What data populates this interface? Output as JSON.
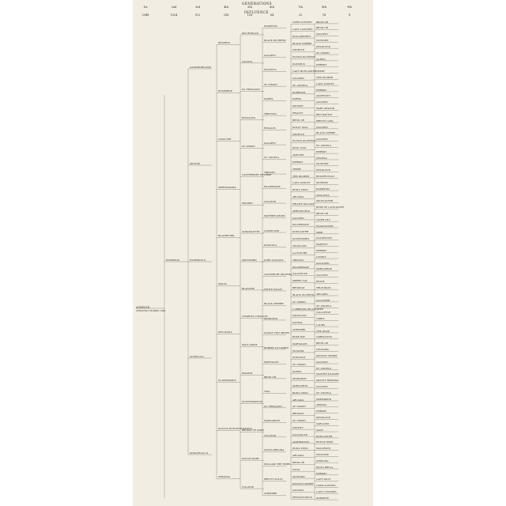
{
  "header": {
    "generations_label": "GENERATIONS",
    "influence_label": "INFLUENCE",
    "generation_numbers": [
      "1st",
      "2nd",
      "3rd",
      "4th",
      "5th",
      "6th",
      "7th",
      "8th",
      "9th"
    ],
    "influence_counts": [
      "2048",
      "1024",
      "512",
      "256",
      "128",
      "64",
      "32",
      "16",
      "8"
    ]
  },
  "subject": {
    "name": "AUREOLE",
    "subtitle": "(Chestnut Horse) 1950"
  },
  "pedigree": [
    {
      "name": "HYPERION",
      "gen": 1
    },
    {
      "name": "GAINSBOROUGH",
      "gen": 2
    },
    {
      "name": "SELENE",
      "gen": 2
    },
    {
      "name": "BAYARDO",
      "gen": 3
    },
    {
      "name": "ROSEDROP",
      "gen": 3
    },
    {
      "name": "CHAUCER",
      "gen": 3
    },
    {
      "name": "SERENISSIMA",
      "gen": 3
    },
    {
      "name": "BAY RONALD",
      "gen": 4
    },
    {
      "name": "GALICIA",
      "gen": 4
    },
    {
      "name": "ST. FRUSQUIN",
      "gen": 4
    },
    {
      "name": "ROSALIND",
      "gen": 4
    },
    {
      "name": "ST. SIMON",
      "gen": 4
    },
    {
      "name": "CANTERBURY PILGRIM",
      "gen": 4
    },
    {
      "name": "MINORU",
      "gen": 4
    },
    {
      "name": "GONDOLETTE",
      "gen": 4
    },
    {
      "name": "HAMPTON",
      "gen": 5
    },
    {
      "name": "BLACK DUCHESS",
      "gen": 5
    },
    {
      "name": "GALOPIN",
      "gen": 5
    },
    {
      "name": "ISOLETTA",
      "gen": 5
    },
    {
      "name": "ST. SIMON",
      "gen": 5
    },
    {
      "name": "ISABEL",
      "gen": 5
    },
    {
      "name": "TRENTON",
      "gen": 5
    },
    {
      "name": "ROSALYS",
      "gen": 5
    },
    {
      "name": "GALOPIN",
      "gen": 5
    },
    {
      "name": "ST. ANGELA",
      "gen": 5
    },
    {
      "name": "TRISTAN",
      "gen": 5
    },
    {
      "name": "PILGRIMAGE",
      "gen": 5
    },
    {
      "name": "CYLLENE",
      "gen": 5
    },
    {
      "name": "MOTHER SIEGEL",
      "gen": 5
    },
    {
      "name": "LOVED ONE",
      "gen": 5
    },
    {
      "name": "DONGOLA",
      "gen": 5
    },
    {
      "name": "LORD CLIFDEN",
      "gen": 6
    },
    {
      "name": "LADY LANGDEN",
      "gen": 6
    },
    {
      "name": "DOLLARSTEIN",
      "gen": 6
    },
    {
      "name": "BLACK CORRIE",
      "gen": 6
    },
    {
      "name": "VEDETTE",
      "gen": 6
    },
    {
      "name": "FLYING DUCHESS",
      "gen": 6
    },
    {
      "name": "DOCIMUS",
      "gen": 6
    },
    {
      "name": "LADY MUNCASTER",
      "gen": 6
    },
    {
      "name": "GALOPIN",
      "gen": 6
    },
    {
      "name": "ST. ANGELA",
      "gen": 6
    },
    {
      "name": "PLEBEIAN",
      "gen": 6
    },
    {
      "name": "PARMA",
      "gen": 6
    },
    {
      "name": "MUSKET",
      "gen": 6
    },
    {
      "name": "FRAILTY",
      "gen": 6
    },
    {
      "name": "BEND OR",
      "gen": 6
    },
    {
      "name": "DOLLY VAAL",
      "gen": 6
    },
    {
      "name": "VEDETTE",
      "gen": 6
    },
    {
      "name": "FLYING DUCHESS",
      "gen": 6
    },
    {
      "name": "KING TOM",
      "gen": 6
    },
    {
      "name": "ADELINE",
      "gen": 6
    },
    {
      "name": "HERMIT",
      "gen": 6
    },
    {
      "name": "THEBY",
      "gen": 6
    },
    {
      "name": "THE PALMER",
      "gen": 6
    },
    {
      "name": "LADY AUDLEY",
      "gen": 6
    },
    {
      "name": "BONA VISTA",
      "gen": 6
    },
    {
      "name": "ARCADIA",
      "gen": 6
    },
    {
      "name": "FRIAR'S BALSAM",
      "gen": 6
    },
    {
      "name": "SPRINGFIELD",
      "gen": 6
    },
    {
      "name": "GALOPIN",
      "gen": 6
    },
    {
      "name": "PILGRIMAGE",
      "gen": 6
    },
    {
      "name": "DONCASTER",
      "gen": 6
    },
    {
      "name": "DOCKHAMES",
      "gen": 6
    },
    {
      "name": "BEND OR",
      "gen": 7
    },
    {
      "name": "BEND OR",
      "gen": 7
    },
    {
      "name": "GALOPIN",
      "gen": 7
    },
    {
      "name": "BLANDFORD",
      "gen": 3
    },
    {
      "name": "MALVA",
      "gen": 3
    },
    {
      "name": "SWYNFORD",
      "gen": 4
    },
    {
      "name": "BLANCHE",
      "gen": 4
    },
    {
      "name": "CHARLES O'MALLEY",
      "gen": 4
    },
    {
      "name": "WILD ARUM",
      "gen": 4
    },
    {
      "name": "JOHN O'GAUNT",
      "gen": 5
    },
    {
      "name": "CANTEBURY PILGRIM",
      "gen": 5
    },
    {
      "name": "WHITE EAGLE",
      "gen": 5
    },
    {
      "name": "BLACK CHERRY",
      "gen": 5
    },
    {
      "name": "DESMOND",
      "gen": 5
    },
    {
      "name": "GOODY TWO SHOES",
      "gen": 5
    },
    {
      "name": "ROBERT LE DIABLE",
      "gen": 5
    },
    {
      "name": "MARTAGON",
      "gen": 5
    },
    {
      "name": "ISINGLASS",
      "gen": 6
    },
    {
      "name": "LA FLECHE",
      "gen": 6
    },
    {
      "name": "TRISTAN",
      "gen": 6
    },
    {
      "name": "PILGRIMAGE",
      "gen": 6
    },
    {
      "name": "GALLINULE",
      "gen": 6
    },
    {
      "name": "MERRY GAL",
      "gen": 6
    },
    {
      "name": "BENDIGO",
      "gen": 6
    },
    {
      "name": "BLACK DUCHESS",
      "gen": 6
    },
    {
      "name": "ST. SIMON",
      "gen": 6
    },
    {
      "name": "L'ABBESSE DE JOUARRE",
      "gen": 6
    },
    {
      "name": "ISINGLASS",
      "gen": 6
    },
    {
      "name": "SANDAL",
      "gen": 6
    },
    {
      "name": "AYRSHIRE",
      "gen": 6
    },
    {
      "name": "ROSE BAY",
      "gen": 6
    },
    {
      "name": "MARTAGON",
      "gen": 6
    },
    {
      "name": "FLYSTER",
      "gen": 6
    },
    {
      "name": "ISONOMY",
      "gen": 7
    },
    {
      "name": "DEADLOCK",
      "gen": 7
    },
    {
      "name": "ST. SIMON",
      "gen": 7
    },
    {
      "name": "QUEEN",
      "gen": 7
    },
    {
      "name": "HERMIT",
      "gen": 7
    },
    {
      "name": "THEBY",
      "gen": 7
    },
    {
      "name": "THE PALMER",
      "gen": 7
    },
    {
      "name": "LADY AUDLEY",
      "gen": 7
    },
    {
      "name": "HERMIT",
      "gen": 7
    },
    {
      "name": "AQUEDUCT",
      "gen": 7
    },
    {
      "name": "GALOPIN",
      "gen": 7
    },
    {
      "name": "MARY SEATON",
      "gen": 7
    },
    {
      "name": "BEN BATTLE",
      "gen": 7
    },
    {
      "name": "PRETTY LASS",
      "gen": 7
    },
    {
      "name": "GALOPIN",
      "gen": 7
    },
    {
      "name": "BLACK CORRIE",
      "gen": 7
    },
    {
      "name": "GALOPIN",
      "gen": 7
    },
    {
      "name": "ST. ANGELA",
      "gen": 7
    },
    {
      "name": "HERMIT",
      "gen": 7
    },
    {
      "name": "FESTIVA",
      "gen": 7
    },
    {
      "name": "ISONOMY",
      "gen": 7
    },
    {
      "name": "DEADLOCK",
      "gen": 7
    },
    {
      "name": "ROSICRUCIAN",
      "gen": 7
    },
    {
      "name": "SUNRISE",
      "gen": 7
    },
    {
      "name": "HAMPTON",
      "gen": 7
    },
    {
      "name": "ATALANTA",
      "gen": 7
    },
    {
      "name": "MUNCASTER",
      "gen": 7
    },
    {
      "name": "ROSE OF LANCASTER",
      "gen": 7
    },
    {
      "name": "BEND OR",
      "gen": 7
    },
    {
      "name": "TIGER LILY",
      "gen": 7
    },
    {
      "name": "HAGIOSCOPE",
      "gen": 7
    },
    {
      "name": "MIMI",
      "gen": 7
    },
    {
      "name": "GOLDFINCH",
      "gen": 7
    },
    {
      "name": "MAJESTY",
      "gen": 7
    },
    {
      "name": "HERMIT",
      "gen": 7
    },
    {
      "name": "LONELY",
      "gen": 7
    },
    {
      "name": "GALLOPIN",
      "gen": 7
    },
    {
      "name": "MARGARINE",
      "gen": 7
    },
    {
      "name": "GALOPIN",
      "gen": 7
    },
    {
      "name": "EDITH",
      "gen": 7
    },
    {
      "name": "TRUE BLUE",
      "gen": 7
    },
    {
      "name": "ARCADIA",
      "gen": 7
    },
    {
      "name": "GALLOPER",
      "gen": 7
    },
    {
      "name": "ST. ANGELA",
      "gen": 7
    },
    {
      "name": "CALLIPYGE",
      "gen": 7
    },
    {
      "name": "TARDY",
      "gen": 7
    },
    {
      "name": "LAURA",
      "gen": 7
    },
    {
      "name": "THE DUKE",
      "gen": 7
    },
    {
      "name": "TARRAGONA",
      "gen": 7
    },
    {
      "name": "BEND OR",
      "gen": 7
    },
    {
      "name": "LEONORA",
      "gen": 7
    },
    {
      "name": "DISTANT SHORE",
      "gen": 7
    },
    {
      "name": "GALOPIN",
      "gen": 7
    },
    {
      "name": "ST. ANGELA",
      "gen": 7
    },
    {
      "name": "MASTER KILDARE",
      "gen": 7
    },
    {
      "name": "MOUNT MESSINA",
      "gen": 7
    },
    {
      "name": "GALOPIN",
      "gen": 7
    },
    {
      "name": "ST. ANGELA",
      "gen": 7
    },
    {
      "name": "GREMORNE",
      "gen": 7
    },
    {
      "name": "ARMIDA",
      "gen": 7
    },
    {
      "name": "HERMIT",
      "gen": 7
    },
    {
      "name": "DEADLOCK",
      "gen": 7
    },
    {
      "name": "SARCASM",
      "gen": 7
    },
    {
      "name": "SAGE",
      "gen": 7
    },
    {
      "name": "DONCASTER",
      "gen": 7
    },
    {
      "name": "ROUGE ROSE",
      "gen": 7
    },
    {
      "name": "MACARONI",
      "gen": 7
    },
    {
      "name": "VENTURE",
      "gen": 7
    },
    {
      "name": "STIRLING",
      "gen": 7
    },
    {
      "name": "ISOLA BELLA",
      "gen": 7
    },
    {
      "name": "HERMIT",
      "gen": 7
    },
    {
      "name": "LADY SPLIT",
      "gen": 7
    },
    {
      "name": "LORD CLIFDEN",
      "gen": 7
    },
    {
      "name": "LADY LANGDEN",
      "gen": 7
    },
    {
      "name": "DARIZINE",
      "gen": 7
    },
    {
      "name": "HYPERION II",
      "gen": 2
    },
    {
      "name": "ANGELOLA",
      "gen": 2
    },
    {
      "name": "DONATELLO II",
      "gen": 2
    },
    {
      "name": "DELLEANA",
      "gen": 3
    },
    {
      "name": "CLARISSIMUS",
      "gen": 3
    },
    {
      "name": "DUCCIA DI BUONINSEGNA",
      "gen": 3
    },
    {
      "name": "RADIUM",
      "gen": 4
    },
    {
      "name": "QUINTESSENCE",
      "gen": 4
    },
    {
      "name": "BRIDGE OF EARN",
      "gen": 4
    },
    {
      "name": "DUTCH MARY",
      "gen": 4
    },
    {
      "name": "BEND OR",
      "gen": 5
    },
    {
      "name": "TAIA",
      "gen": 5
    },
    {
      "name": "ST. FRUSQUIN",
      "gen": 5
    },
    {
      "name": "MARGARINE",
      "gen": 5
    },
    {
      "name": "CYLLENE",
      "gen": 5
    },
    {
      "name": "SANTA BRIGIDA",
      "gen": 5
    },
    {
      "name": "WILLIAM THE THIRD",
      "gen": 5
    },
    {
      "name": "PRETTY POLLY",
      "gen": 5
    },
    {
      "name": "DONOVAN",
      "gen": 6
    },
    {
      "name": "ST. SIMON",
      "gen": 6
    },
    {
      "name": "ISABEL",
      "gen": 6
    },
    {
      "name": "PETRARCH",
      "gen": 6
    },
    {
      "name": "MARGARITA",
      "gen": 6
    },
    {
      "name": "BONA VISTA",
      "gen": 6
    },
    {
      "name": "ARCADIA",
      "gen": 6
    },
    {
      "name": "ST. SIMON",
      "gen": 6
    },
    {
      "name": "BRIDGET",
      "gen": 6
    },
    {
      "name": "ST. SIMON",
      "gen": 6
    },
    {
      "name": "GRAVITY",
      "gen": 6
    },
    {
      "name": "GALLINULE",
      "gen": 6
    },
    {
      "name": "ADMIRATION",
      "gen": 6
    },
    {
      "name": "BONA VISTA",
      "gen": 6
    },
    {
      "name": "ARCADIA",
      "gen": 6
    },
    {
      "name": "CYLLENE",
      "gen": 4
    },
    {
      "name": "VIRGINIA",
      "gen": 3
    },
    {
      "name": "BEND OR",
      "gen": 6
    },
    {
      "name": "VISTA",
      "gen": 6
    },
    {
      "name": "ISONOMY",
      "gen": 6
    },
    {
      "name": "DISTANT SHORE",
      "gen": 6
    },
    {
      "name": "SANCHO",
      "gen": 6
    },
    {
      "name": "PHYSIOTONICS",
      "gen": 6
    },
    {
      "name": "AYRSHIRE",
      "gen": 5
    }
  ]
}
